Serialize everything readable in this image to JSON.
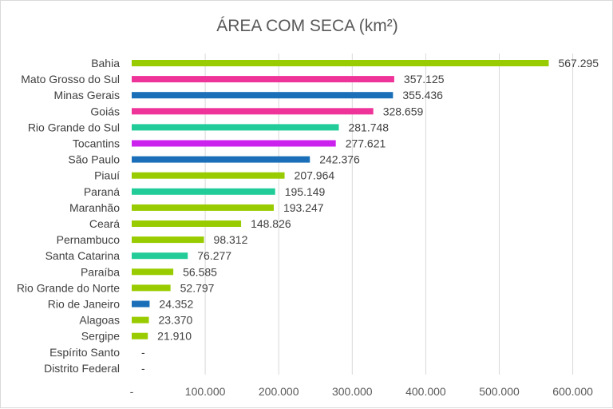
{
  "chart_data": {
    "type": "bar",
    "orientation": "horizontal",
    "title": "ÁREA COM SECA (km²)",
    "xlabel": "",
    "ylabel": "",
    "xlim": [
      0,
      600000
    ],
    "grid": true,
    "legend": "none",
    "x_ticks": [
      {
        "value": 0,
        "label": "-"
      },
      {
        "value": 100000,
        "label": "100.000"
      },
      {
        "value": 200000,
        "label": "200.000"
      },
      {
        "value": 300000,
        "label": "300.000"
      },
      {
        "value": 400000,
        "label": "400.000"
      },
      {
        "value": 500000,
        "label": "500.000"
      },
      {
        "value": 600000,
        "label": "600.000"
      }
    ],
    "colors": {
      "green": "#99cc00",
      "pink": "#ee3399",
      "blue": "#1a6fb8",
      "teal": "#22cc99",
      "purple": "#cc22ee"
    },
    "bars": [
      {
        "category": "Bahia",
        "value": 567295,
        "label": "567.295",
        "color": "green"
      },
      {
        "category": "Mato Grosso do Sul",
        "value": 357125,
        "label": "357.125",
        "color": "pink"
      },
      {
        "category": "Minas Gerais",
        "value": 355436,
        "label": "355.436",
        "color": "blue"
      },
      {
        "category": "Goiás",
        "value": 328659,
        "label": "328.659",
        "color": "pink"
      },
      {
        "category": "Rio Grande do Sul",
        "value": 281748,
        "label": "281.748",
        "color": "teal"
      },
      {
        "category": "Tocantins",
        "value": 277621,
        "label": "277.621",
        "color": "purple"
      },
      {
        "category": "São Paulo",
        "value": 242376,
        "label": "242.376",
        "color": "blue"
      },
      {
        "category": "Piauí",
        "value": 207964,
        "label": "207.964",
        "color": "green"
      },
      {
        "category": "Paraná",
        "value": 195149,
        "label": "195.149",
        "color": "teal"
      },
      {
        "category": "Maranhão",
        "value": 193247,
        "label": "193.247",
        "color": "green"
      },
      {
        "category": "Ceará",
        "value": 148826,
        "label": "148.826",
        "color": "green"
      },
      {
        "category": "Pernambuco",
        "value": 98312,
        "label": "98.312",
        "color": "green"
      },
      {
        "category": "Santa Catarina",
        "value": 76277,
        "label": "76.277",
        "color": "teal"
      },
      {
        "category": "Paraíba",
        "value": 56585,
        "label": "56.585",
        "color": "green"
      },
      {
        "category": "Rio Grande do Norte",
        "value": 52797,
        "label": "52.797",
        "color": "green"
      },
      {
        "category": "Rio de Janeiro",
        "value": 24352,
        "label": "24.352",
        "color": "blue"
      },
      {
        "category": "Alagoas",
        "value": 23370,
        "label": "23.370",
        "color": "green"
      },
      {
        "category": "Sergipe",
        "value": 21910,
        "label": "21.910",
        "color": "green"
      },
      {
        "category": "Espírito Santo",
        "value": 0,
        "label": "-",
        "color": "green"
      },
      {
        "category": "Distrito Federal",
        "value": 0,
        "label": "-",
        "color": "green"
      }
    ]
  }
}
